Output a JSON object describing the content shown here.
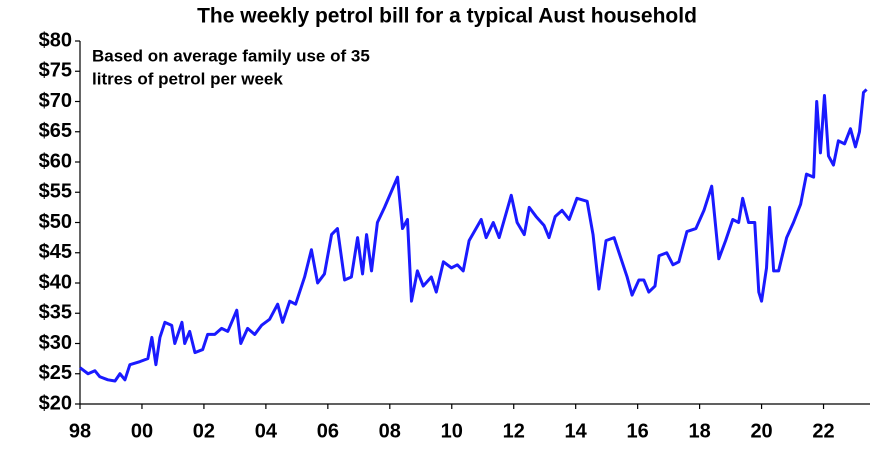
{
  "chart_data": {
    "type": "line",
    "title": "The weekly petrol bill for a typical Aust household",
    "annotation": [
      "Based on average family use of 35",
      "litres of petrol per week"
    ],
    "x": [
      1998.0,
      1998.26,
      1998.48,
      1998.64,
      1998.9,
      1999.13,
      1999.29,
      1999.45,
      1999.61,
      1999.93,
      2000.19,
      2000.32,
      2000.45,
      2000.58,
      2000.74,
      2000.96,
      2001.06,
      2001.29,
      2001.38,
      2001.54,
      2001.71,
      2001.96,
      2002.12,
      2002.35,
      2002.57,
      2002.77,
      2003.06,
      2003.19,
      2003.41,
      2003.64,
      2003.86,
      2004.12,
      2004.38,
      2004.54,
      2004.77,
      2004.96,
      2005.25,
      2005.47,
      2005.67,
      2005.89,
      2006.12,
      2006.31,
      2006.54,
      2006.76,
      2006.96,
      2007.12,
      2007.25,
      2007.41,
      2007.6,
      2007.83,
      2008.25,
      2008.41,
      2008.57,
      2008.7,
      2008.89,
      2009.08,
      2009.34,
      2009.5,
      2009.73,
      2009.99,
      2010.18,
      2010.37,
      2010.56,
      2010.95,
      2011.11,
      2011.34,
      2011.53,
      2011.92,
      2012.11,
      2012.34,
      2012.5,
      2012.72,
      2012.98,
      2013.14,
      2013.34,
      2013.56,
      2013.79,
      2014.04,
      2014.37,
      2014.56,
      2014.75,
      2014.98,
      2015.24,
      2015.4,
      2015.66,
      2015.82,
      2016.04,
      2016.2,
      2016.36,
      2016.56,
      2016.69,
      2016.94,
      2017.14,
      2017.33,
      2017.59,
      2017.88,
      2018.14,
      2018.39,
      2018.62,
      2018.84,
      2019.07,
      2019.26,
      2019.39,
      2019.58,
      2019.78,
      2019.91,
      2020.0,
      2020.16,
      2020.26,
      2020.39,
      2020.55,
      2020.81,
      2021.03,
      2021.26,
      2021.45,
      2021.68,
      2021.78,
      2021.9,
      2022.03,
      2022.16,
      2022.32,
      2022.48,
      2022.68,
      2022.87,
      2023.03,
      2023.16,
      2023.29,
      2023.39
    ],
    "series": [
      {
        "name": "Weekly petrol bill",
        "color": "#1a1aff",
        "values": [
          26,
          25,
          25.5,
          24.5,
          24,
          23.8,
          25,
          24,
          26.5,
          27,
          27.5,
          31,
          26.5,
          31,
          33.5,
          33,
          30,
          33.5,
          30,
          32,
          28.5,
          29,
          31.5,
          31.5,
          32.5,
          32,
          35.5,
          30,
          32.5,
          31.5,
          33,
          34,
          36.5,
          33.5,
          37,
          36.5,
          41,
          45.5,
          40,
          41.5,
          48,
          49,
          40.5,
          41,
          47.5,
          41.5,
          48,
          42,
          50,
          52.5,
          57.5,
          49,
          50.5,
          37,
          42,
          39.5,
          41,
          38.5,
          43.5,
          42.5,
          43,
          42,
          47,
          50.5,
          47.5,
          50,
          47.5,
          54.5,
          50,
          48,
          52.5,
          51,
          49.5,
          47.5,
          51,
          52,
          50.5,
          54,
          53.5,
          48,
          39,
          47,
          47.5,
          45,
          41,
          38,
          40.5,
          40.5,
          38.5,
          39.5,
          44.5,
          45,
          43,
          43.5,
          48.5,
          49,
          52,
          56,
          44,
          47,
          50.5,
          50,
          54,
          50,
          50,
          38.5,
          37,
          42.5,
          52.5,
          42,
          42,
          47.5,
          50,
          53,
          58,
          57.5,
          70,
          61.5,
          71,
          61,
          59.5,
          63.5,
          63,
          65.5,
          62.5,
          65,
          71.5,
          72
        ]
      }
    ],
    "xlim": [
      1998,
      2023.5
    ],
    "xticks": [
      {
        "value": 1998,
        "label": "98"
      },
      {
        "value": 2000,
        "label": "00"
      },
      {
        "value": 2002,
        "label": "02"
      },
      {
        "value": 2004,
        "label": "04"
      },
      {
        "value": 2006,
        "label": "06"
      },
      {
        "value": 2008,
        "label": "08"
      },
      {
        "value": 2010,
        "label": "10"
      },
      {
        "value": 2012,
        "label": "12"
      },
      {
        "value": 2014,
        "label": "14"
      },
      {
        "value": 2016,
        "label": "16"
      },
      {
        "value": 2018,
        "label": "18"
      },
      {
        "value": 2020,
        "label": "20"
      },
      {
        "value": 2022,
        "label": "22"
      }
    ],
    "ylim": [
      20,
      80
    ],
    "yticks": [
      {
        "value": 20,
        "label": "$20"
      },
      {
        "value": 25,
        "label": "$25"
      },
      {
        "value": 30,
        "label": "$30"
      },
      {
        "value": 35,
        "label": "$35"
      },
      {
        "value": 40,
        "label": "$40"
      },
      {
        "value": 45,
        "label": "$45"
      },
      {
        "value": 50,
        "label": "$50"
      },
      {
        "value": 55,
        "label": "$55"
      },
      {
        "value": 60,
        "label": "$60"
      },
      {
        "value": 65,
        "label": "$65"
      },
      {
        "value": 70,
        "label": "$70"
      },
      {
        "value": 75,
        "label": "$75"
      },
      {
        "value": 80,
        "label": "$80"
      }
    ],
    "grid": false
  }
}
